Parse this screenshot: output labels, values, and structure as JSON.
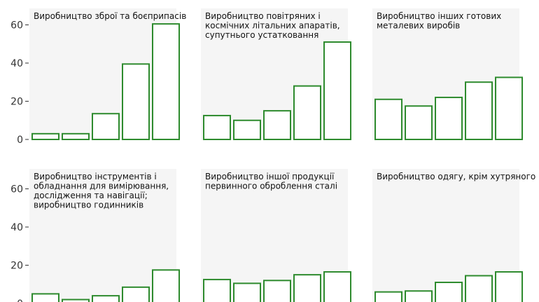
{
  "chart_data": {
    "type": "bar",
    "layout": "small-multiples-2x3",
    "ylim": [
      0,
      65
    ],
    "yticks": [
      0,
      20,
      40,
      60
    ],
    "bar_color": "#2e8b2e",
    "panel_background": "#f5f5f5",
    "panels": [
      {
        "title": [
          "Виробництво зброї та боєприпасів"
        ],
        "values": [
          3,
          3,
          13.5,
          39.5,
          60.5
        ]
      },
      {
        "title": [
          "Виробництво повітряних і",
          "космічних літальних апаратів,",
          "супутнього устатковання"
        ],
        "values": [
          12.5,
          10,
          15,
          28,
          51
        ]
      },
      {
        "title": [
          "Виробництво інших готових",
          "металевих виробів"
        ],
        "values": [
          21,
          17.5,
          22,
          30,
          32.5
        ]
      },
      {
        "title": [
          "Виробництво інструментів і",
          "обладнання для вимірювання,",
          "дослідження та навігації;",
          "виробництво годинників"
        ],
        "values": [
          5,
          2,
          4,
          8.5,
          17.5
        ]
      },
      {
        "title": [
          "Виробництво іншої продукції",
          "первинного оброблення сталі"
        ],
        "values": [
          12.5,
          10.5,
          12,
          15,
          16.5
        ]
      },
      {
        "title": [
          "Виробництво одягу, крім хутряного"
        ],
        "values": [
          6,
          6.5,
          11,
          14.5,
          16.5
        ]
      }
    ]
  }
}
